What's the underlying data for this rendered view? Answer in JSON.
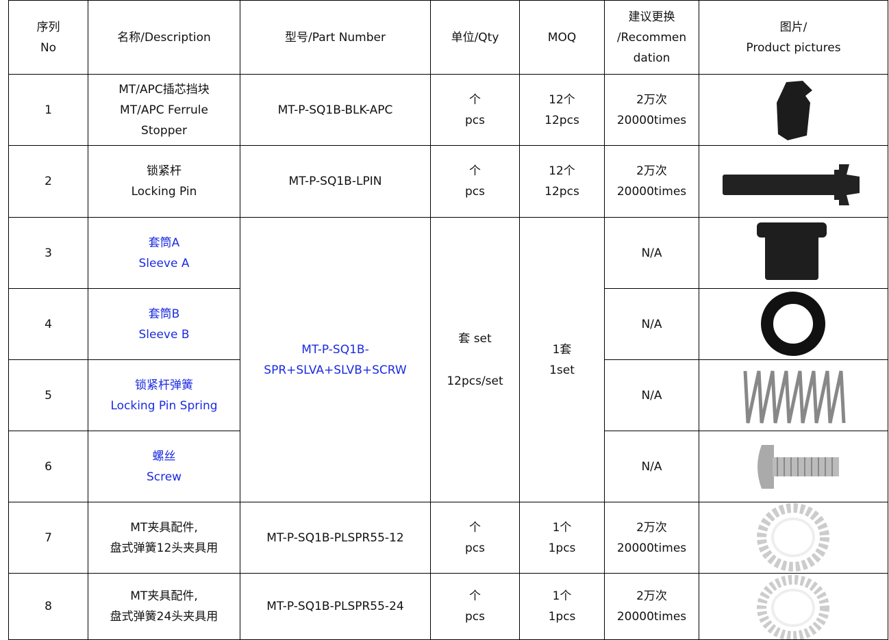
{
  "table": {
    "header": [
      [
        "序列",
        "No"
      ],
      [
        "名称/Description"
      ],
      [
        "型号/Part Number"
      ],
      [
        "单位/Qty"
      ],
      [
        "MOQ"
      ],
      [
        "建议更换",
        "/Recommen",
        "dation"
      ],
      [
        "图片/",
        "Product pictures"
      ]
    ],
    "rows": [
      {
        "no": "1",
        "description": [
          "MT/APC插芯挡块",
          "MT/APC Ferrule",
          "Stopper"
        ],
        "part_number": [
          "MT-P-SQ1B-BLK-APC"
        ],
        "qty": [
          "个",
          "pcs"
        ],
        "moq": [
          "12个",
          "12pcs"
        ],
        "recommendation": [
          "2万次",
          "20000times"
        ]
      },
      {
        "no": "2",
        "description": [
          "锁紧杆",
          "Locking Pin"
        ],
        "part_number": [
          "MT-P-SQ1B-LPIN"
        ],
        "qty": [
          "个",
          "pcs"
        ],
        "moq": [
          "12个",
          "12pcs"
        ],
        "recommendation": [
          "2万次",
          "20000times"
        ]
      },
      {
        "no": "3",
        "description": [
          "套筒A",
          "Sleeve A"
        ],
        "recommendation": [
          "N/A"
        ]
      },
      {
        "no": "4",
        "description": [
          "套筒B",
          "Sleeve B"
        ],
        "recommendation": [
          "N/A"
        ]
      },
      {
        "no": "5",
        "description": [
          "锁紧杆弹簧",
          "Locking Pin Spring"
        ],
        "recommendation": [
          "N/A"
        ]
      },
      {
        "no": "6",
        "description": [
          "螺丝",
          "Screw"
        ],
        "recommendation": [
          "N/A"
        ]
      },
      {
        "no": "7",
        "description": [
          "MT夹具配件,",
          "盘式弹簧12头夹具用"
        ],
        "part_number": [
          "MT-P-SQ1B-PLSPR55-12"
        ],
        "qty": [
          "个",
          "pcs"
        ],
        "moq": [
          "1个",
          "1pcs"
        ],
        "recommendation": [
          "2万次",
          "20000times"
        ]
      },
      {
        "no": "8",
        "description": [
          "MT夹具配件,",
          "盘式弹簧24头夹具用"
        ],
        "part_number": [
          "MT-P-SQ1B-PLSPR55-24"
        ],
        "qty": [
          "个",
          "pcs"
        ],
        "moq": [
          "1个",
          "1pcs"
        ],
        "recommendation": [
          "2万次",
          "20000times"
        ]
      }
    ],
    "kit": {
      "part_number": [
        "MT-P-SQ1B-",
        "SPR+SLVA+SLVB+SCRW"
      ],
      "qty": [
        "套 set",
        "12pcs/set"
      ],
      "moq": [
        "1套",
        "1set"
      ]
    }
  }
}
